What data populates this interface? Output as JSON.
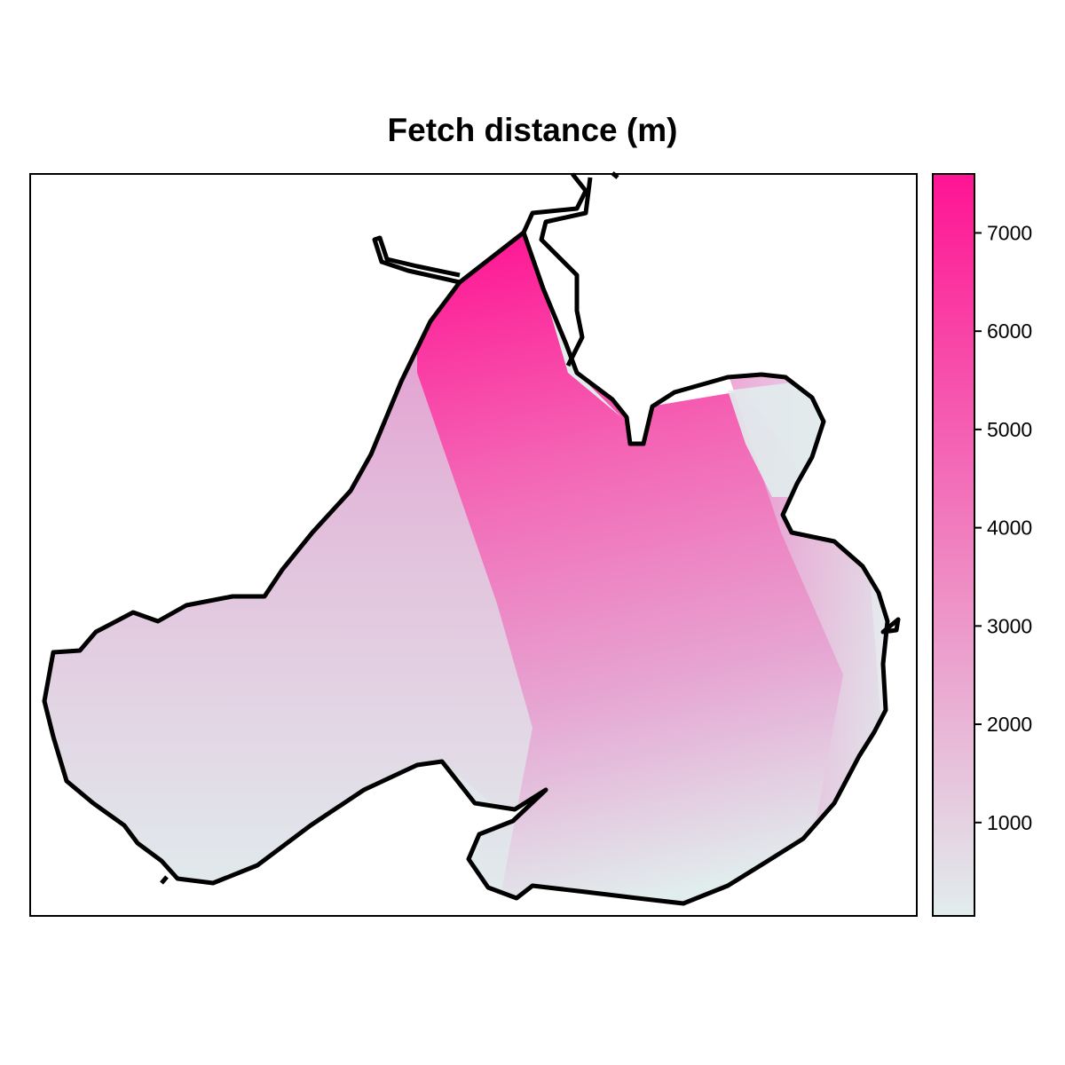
{
  "chart_data": {
    "type": "heatmap",
    "title": "Fetch distance (m)",
    "colorbar": {
      "min": 50,
      "max": 7600,
      "ticks": [
        1000,
        2000,
        3000,
        4000,
        5000,
        6000,
        7000
      ],
      "tick_labels": [
        "1000",
        "2000",
        "3000",
        "4000",
        "5000",
        "6000",
        "7000"
      ],
      "color_low": "#e1eded",
      "color_high": "#ff1493"
    },
    "axes": {
      "shown": false
    },
    "grid": false,
    "legend_position": "right",
    "outline_color": "#000000"
  }
}
